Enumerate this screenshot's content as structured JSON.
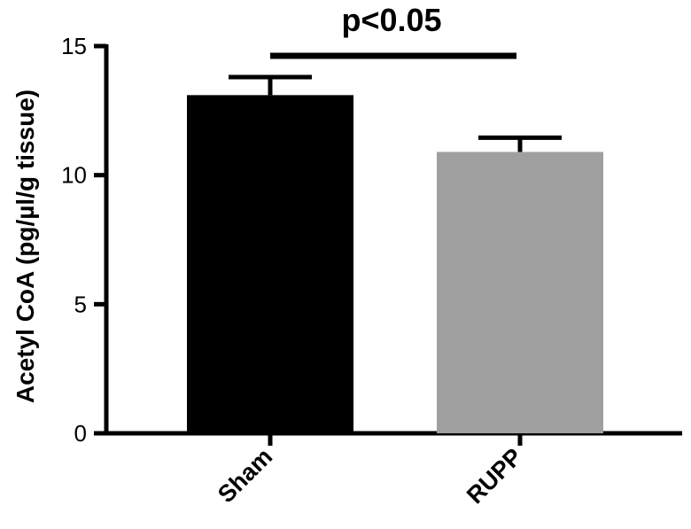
{
  "chart_data": {
    "type": "bar",
    "categories": [
      "Sham",
      "RUPP"
    ],
    "values": [
      13.1,
      10.9
    ],
    "errors": [
      0.7,
      0.55
    ],
    "ylabel": "Acetyl  CoA  (pg/µl/g tissue)",
    "xlabel": "",
    "ylim": [
      0,
      15
    ],
    "yticks": [
      0,
      5,
      10,
      15
    ],
    "bar_colors": [
      "#000000",
      "#9f9f9f"
    ],
    "significance": {
      "label": "p<0.05",
      "between": [
        "Sham",
        "RUPP"
      ]
    },
    "grid": false,
    "legend": "none"
  }
}
